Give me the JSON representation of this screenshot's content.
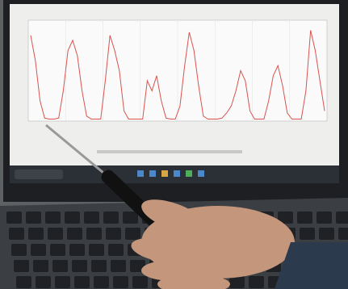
{
  "screen_chart": {
    "type": "line",
    "color": "#d9534f",
    "ylim": [
      0,
      100
    ],
    "values": [
      85,
      60,
      20,
      3,
      2,
      2,
      3,
      30,
      70,
      80,
      65,
      30,
      5,
      2,
      2,
      2,
      40,
      85,
      70,
      50,
      10,
      2,
      2,
      2,
      2,
      40,
      30,
      45,
      20,
      3,
      2,
      2,
      15,
      55,
      88,
      70,
      35,
      5,
      2,
      2,
      2,
      3,
      8,
      15,
      30,
      50,
      40,
      10,
      2,
      2,
      2,
      20,
      45,
      55,
      35,
      8,
      2,
      2,
      2,
      30,
      90,
      70,
      40,
      10
    ]
  }
}
